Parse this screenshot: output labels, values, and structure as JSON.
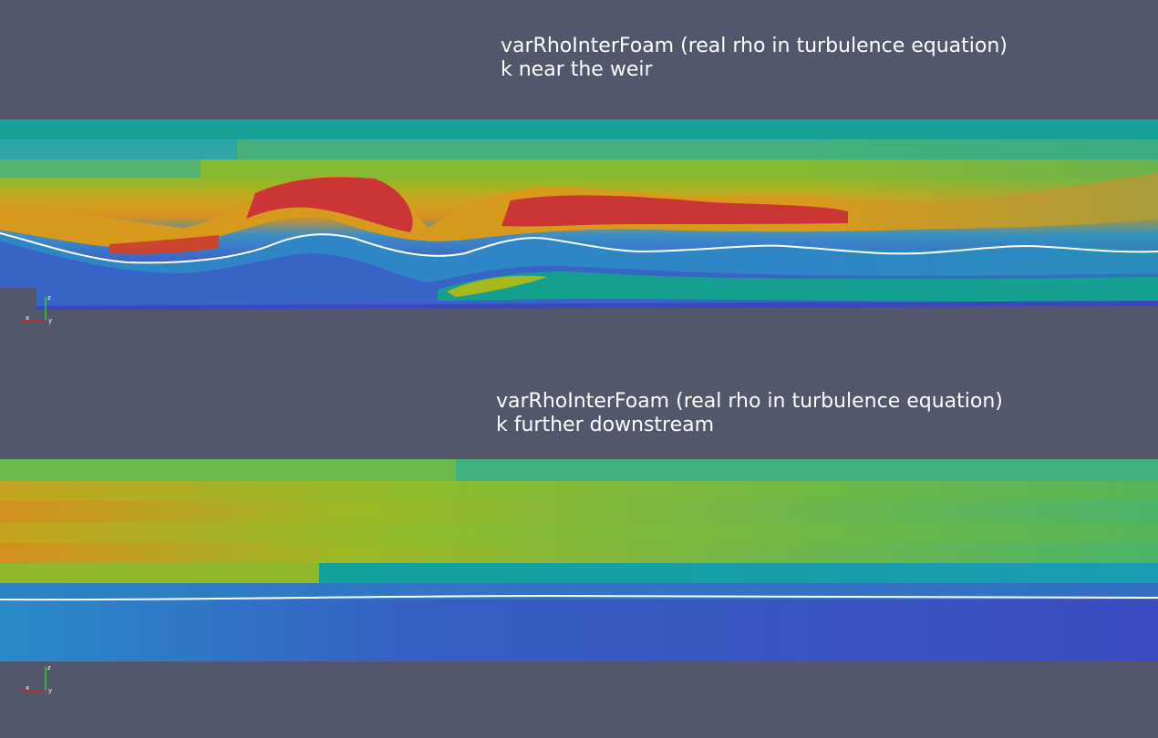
{
  "views": [
    {
      "title_line1": "varRhoInterFoam (real rho in turbulence equation)",
      "title_line2": "k near the weir"
    },
    {
      "title_line1": "varRhoInterFoam (real rho in turbulence equation)",
      "title_line2": "k further downstream"
    }
  ],
  "axes": {
    "x": "x",
    "y": "y",
    "z": "z"
  },
  "colors": {
    "background": "#52576b",
    "low": "#3b4cc0",
    "mid_blue": "#2f7fc4",
    "teal": "#10a28e",
    "green": "#5bb64a",
    "yellow": "#b6b51a",
    "orange": "#e0931a",
    "high": "#cc3333",
    "interface_line": "#ffffff"
  }
}
